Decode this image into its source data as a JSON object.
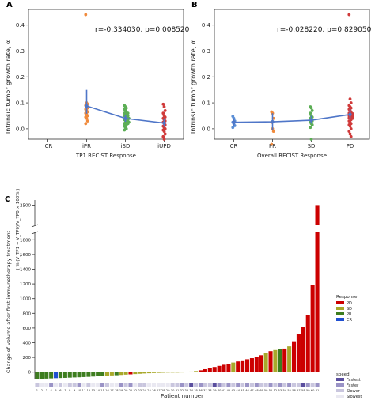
{
  "panels": {
    "A": {
      "letter": "A"
    },
    "B": {
      "letter": "B"
    },
    "C": {
      "letter": "C"
    }
  },
  "shared_ylabel": "Intrinsic tumor growth rate, α",
  "chart_data": [
    {
      "id": "A",
      "type": "scatter",
      "xlabel": "TP1 RECIST Response",
      "ylabel": "Intrinsic tumor growth rate, α",
      "annotation": "r=-0.334030, p=0.008520",
      "categories": [
        "iCR",
        "iPR",
        "iSD",
        "iUPD"
      ],
      "yticks": [
        "0.0",
        "0.1",
        "0.2",
        "0.3",
        "0.4"
      ],
      "ylim": [
        -0.04,
        0.46
      ],
      "colors": [
        "#5b8fd6",
        "#f08a3c",
        "#5cae55",
        "#d03a3a"
      ],
      "mean_line_color": "#4f76c8",
      "means": [
        null,
        0.088,
        0.04,
        0.022
      ],
      "ci": [
        null,
        [
          0.058,
          0.15
        ],
        [
          0.027,
          0.053
        ],
        [
          0.008,
          0.04
        ]
      ],
      "points": [
        [],
        [
          0.44,
          0.1,
          0.095,
          0.09,
          0.085,
          0.08,
          0.075,
          0.07,
          0.065,
          0.06,
          0.055,
          0.05,
          0.045,
          0.04,
          0.03,
          0.02
        ],
        [
          0.09,
          0.085,
          0.08,
          0.075,
          0.07,
          0.065,
          0.06,
          0.06,
          0.055,
          0.05,
          0.05,
          0.045,
          0.045,
          0.04,
          0.04,
          0.035,
          0.035,
          0.03,
          0.03,
          0.025,
          0.025,
          0.02,
          0.02,
          0.015,
          0.01,
          0.005,
          0.0,
          -0.005
        ],
        [
          0.095,
          0.085,
          0.07,
          0.06,
          0.05,
          0.045,
          0.04,
          0.035,
          0.03,
          0.025,
          0.02,
          0.015,
          0.01,
          0.005,
          0.0,
          -0.005,
          -0.01,
          -0.02,
          -0.03,
          -0.04
        ]
      ]
    },
    {
      "id": "B",
      "type": "scatter",
      "xlabel": "Overall RECIST Response",
      "ylabel": "Intrinsic tumor growth rate, α",
      "annotation": "r=-0.028220, p=0.829050",
      "categories": [
        "CR",
        "PR",
        "SD",
        "PD"
      ],
      "yticks": [
        "0.0",
        "0.1",
        "0.2",
        "0.3",
        "0.4"
      ],
      "ylim": [
        -0.04,
        0.46
      ],
      "colors": [
        "#5b8fd6",
        "#f08a3c",
        "#5cae55",
        "#d03a3a"
      ],
      "mean_line_color": "#4f76c8",
      "means": [
        0.025,
        0.027,
        0.033,
        0.055
      ],
      "ci": [
        [
          0.012,
          0.04
        ],
        [
          -0.005,
          0.06
        ],
        [
          0.02,
          0.05
        ],
        [
          0.04,
          0.075
        ]
      ],
      "points": [
        [
          0.048,
          0.04,
          0.03,
          0.025,
          0.02,
          0.012,
          0.005
        ],
        [
          0.065,
          0.06,
          0.04,
          0.025,
          0.0,
          -0.01,
          -0.06
        ],
        [
          0.085,
          0.08,
          0.07,
          0.06,
          0.05,
          0.045,
          0.04,
          0.035,
          0.03,
          0.025,
          0.02,
          0.015,
          0.005,
          -0.04
        ],
        [
          0.44,
          0.115,
          0.1,
          0.09,
          0.085,
          0.08,
          0.075,
          0.07,
          0.065,
          0.06,
          0.058,
          0.055,
          0.05,
          0.048,
          0.045,
          0.042,
          0.04,
          0.035,
          0.03,
          0.025,
          0.02,
          0.015,
          0.01,
          0.0,
          -0.01,
          -0.02,
          -0.03
        ]
      ]
    },
    {
      "id": "C",
      "type": "bar",
      "xlabel": "Patient number",
      "ylabel": "Change of volume after first immunotherapy treatment",
      "ylabel_formula": "( % (V_TP1 − V_TP0)/V_TP0 × 100% )",
      "yticks_lower": [
        "0",
        "200",
        "400",
        "600",
        "800",
        "1000",
        "1200",
        "1400",
        "1600",
        "1800"
      ],
      "ytick_upper": "2500",
      "ylim_lower": [
        -100,
        1900
      ],
      "break_upper_range": [
        2300,
        2550
      ],
      "categories": [
        "1",
        "2",
        "3",
        "4",
        "5",
        "6",
        "7",
        "8",
        "9",
        "10",
        "11",
        "12",
        "13",
        "14",
        "15",
        "16",
        "17",
        "18",
        "19",
        "20",
        "21",
        "22",
        "23",
        "24",
        "25",
        "26",
        "27",
        "28",
        "29",
        "30",
        "31",
        "32",
        "33",
        "34",
        "35",
        "36",
        "37",
        "38",
        "39",
        "40",
        "41",
        "42",
        "43",
        "44",
        "45",
        "46",
        "47",
        "48",
        "49",
        "50",
        "51",
        "52",
        "53",
        "54",
        "55",
        "56",
        "57",
        "58",
        "59",
        "60",
        "61"
      ],
      "values": [
        -100,
        -92,
        -88,
        -85,
        -82,
        -80,
        -78,
        -75,
        -72,
        -70,
        -67,
        -64,
        -60,
        -56,
        -52,
        -48,
        -45,
        -42,
        -38,
        -34,
        -30,
        -26,
        -22,
        -18,
        -15,
        -12,
        -10,
        -8,
        -6,
        -4,
        -2,
        2,
        5,
        8,
        15,
        25,
        40,
        55,
        70,
        85,
        100,
        115,
        130,
        145,
        160,
        175,
        190,
        210,
        230,
        255,
        285,
        300,
        310,
        320,
        350,
        420,
        520,
        620,
        780,
        1180,
        2500
      ],
      "responses": [
        "PR",
        "PR",
        "PR",
        "PR",
        "CR",
        "PR",
        "PR",
        "PR",
        "PR",
        "PR",
        "PR",
        "PR",
        "PR",
        "PR",
        "PR",
        "SD",
        "SD",
        "PR",
        "SD",
        "SD",
        "PD",
        "SD",
        "SD",
        "SD",
        "SD",
        "SD",
        "SD",
        "SD",
        "SD",
        "SD",
        "SD",
        "SD",
        "SD",
        "SD",
        "SD",
        "PD",
        "PD",
        "PD",
        "PD",
        "PD",
        "PD",
        "PD",
        "SD",
        "PD",
        "PD",
        "PD",
        "PD",
        "PD",
        "PD",
        "SD",
        "PD",
        "SD",
        "PR",
        "PD",
        "SD",
        "PD",
        "PD",
        "PD",
        "PD",
        "PD",
        "PD"
      ],
      "speeds": [
        "Slower",
        "Slowest",
        "Slowest",
        "Faster",
        "Slowest",
        "Slower",
        "Slowest",
        "Slower",
        "Slower",
        "Faster",
        "Slowest",
        "Slower",
        "Slowest",
        "Slowest",
        "Faster",
        "Slower",
        "Slowest",
        "Slowest",
        "Faster",
        "Slower",
        "Faster",
        "Slowest",
        "Slower",
        "Slower",
        "Slowest",
        "Slowest",
        "Slowest",
        "Slowest",
        "Slowest",
        "Slower",
        "Slower",
        "Faster",
        "Slower",
        "Fastest",
        "Slower",
        "Faster",
        "Slower",
        "Slower",
        "Fastest",
        "Faster",
        "Slower",
        "Faster",
        "Slower",
        "Faster",
        "Slower",
        "Faster",
        "Slower",
        "Faster",
        "Slower",
        "Slower",
        "Faster",
        "Slower",
        "Faster",
        "Slower",
        "Faster",
        "Slower",
        "Slower",
        "Fastest",
        "Faster",
        "Slower",
        "Faster"
      ],
      "response_legend": {
        "title": "Response",
        "items": [
          {
            "label": "PD",
            "color": "#cc0000"
          },
          {
            "label": "SD",
            "color": "#a8a82a"
          },
          {
            "label": "PR",
            "color": "#3d7d1f"
          },
          {
            "label": "CR",
            "color": "#1f4fd1"
          }
        ]
      },
      "speed_legend": {
        "title": "speed",
        "items": [
          {
            "label": "Fastest",
            "color": "#5a4e9e"
          },
          {
            "label": "Faster",
            "color": "#9a93c6"
          },
          {
            "label": "Slower",
            "color": "#c9c6de"
          },
          {
            "label": "Slowest",
            "color": "#e9e8f1"
          }
        ]
      }
    }
  ]
}
